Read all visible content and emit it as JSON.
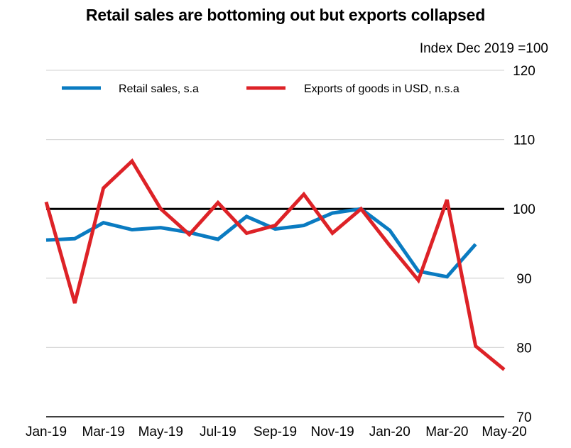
{
  "chart_data": {
    "type": "line",
    "title": "Retail sales are bottoming out but exports collapsed",
    "unit_label": "Index Dec 2019 =100",
    "xlabel": "",
    "ylabel": "",
    "ylim": [
      70,
      120
    ],
    "y_ticks": [
      70,
      80,
      90,
      100,
      110,
      120
    ],
    "y_tick_labels": [
      "70",
      "80",
      "90",
      "100",
      "110",
      "120"
    ],
    "y_axis_side": "right",
    "grid": true,
    "reference_line": 100,
    "x": [
      "Jan-19",
      "Feb-19",
      "Mar-19",
      "Apr-19",
      "May-19",
      "Jun-19",
      "Jul-19",
      "Aug-19",
      "Sep-19",
      "Oct-19",
      "Nov-19",
      "Dec-19",
      "Jan-20",
      "Feb-20",
      "Mar-20",
      "Apr-20",
      "May-20"
    ],
    "x_tick_labels": [
      "Jan-19",
      "Mar-19",
      "May-19",
      "Jul-19",
      "Sep-19",
      "Nov-19",
      "Jan-20",
      "Mar-20",
      "May-20"
    ],
    "legend_position": "top",
    "series": [
      {
        "name": "Retail sales, s.a",
        "color": "#0a7bc1",
        "values": [
          95.5,
          95.7,
          98.0,
          97.0,
          97.3,
          96.6,
          95.6,
          98.9,
          97.1,
          97.6,
          99.4,
          100.0,
          96.9,
          91.0,
          90.2,
          94.9,
          null
        ]
      },
      {
        "name": "Exports of goods in USD, n.s.a",
        "color": "#dd2227",
        "values": [
          101.0,
          86.4,
          103.0,
          106.9,
          100.0,
          96.3,
          100.9,
          96.5,
          97.6,
          102.1,
          96.5,
          100.0,
          94.7,
          89.7,
          101.3,
          80.2,
          76.8
        ]
      }
    ]
  }
}
